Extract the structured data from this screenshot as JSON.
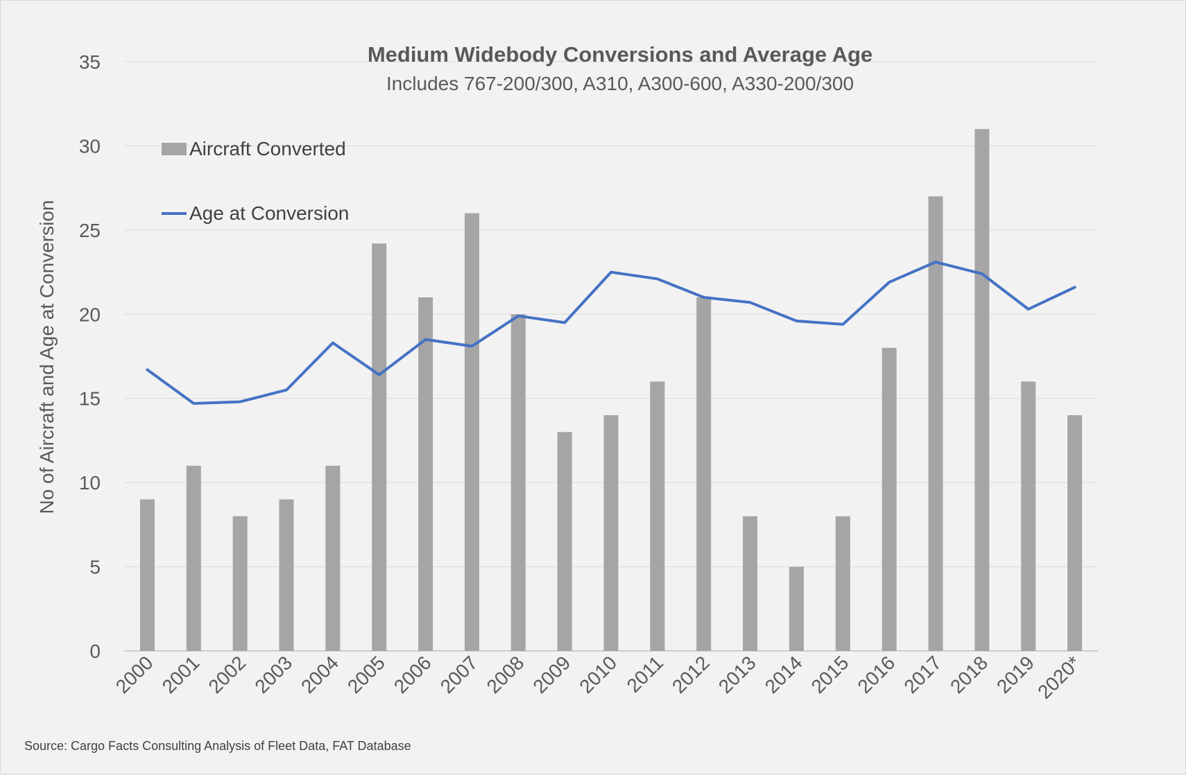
{
  "chart_data": {
    "type": "bar",
    "title": "Medium Widebody Conversions and Average Age",
    "subtitle": "Includes 767-200/300, A310, A300-600, A330-200/300",
    "ylabel": "No of Aircraft and Age at Conversion",
    "xlabel": "",
    "ylim": [
      0,
      35
    ],
    "yticks": [
      0,
      5,
      10,
      15,
      20,
      25,
      30,
      35
    ],
    "grid": true,
    "legend_position": "top-left",
    "categories": [
      "2000",
      "2001",
      "2002",
      "2003",
      "2004",
      "2005",
      "2006",
      "2007",
      "2008",
      "2009",
      "2010",
      "2011",
      "2012",
      "2013",
      "2014",
      "2015",
      "2016",
      "2017",
      "2018",
      "2019",
      "2020*"
    ],
    "series": [
      {
        "name": "Aircraft Converted",
        "type": "bar",
        "color": "#a5a5a5",
        "values": [
          9,
          11,
          8,
          9,
          11,
          24.2,
          21,
          26,
          20,
          13,
          14,
          16,
          21,
          8,
          5,
          8,
          18,
          27,
          31,
          16,
          14
        ]
      },
      {
        "name": "Age at Conversion",
        "type": "line",
        "color": "#4472c4",
        "values": [
          16.7,
          14.7,
          14.8,
          15.5,
          18.3,
          16.4,
          18.5,
          18.1,
          19.9,
          19.5,
          22.5,
          22.1,
          21.0,
          20.7,
          19.6,
          19.4,
          21.9,
          23.1,
          22.4,
          20.3,
          21.6
        ]
      }
    ],
    "source": "Source: Cargo Facts Consulting Analysis of Fleet Data, FAT Database"
  }
}
